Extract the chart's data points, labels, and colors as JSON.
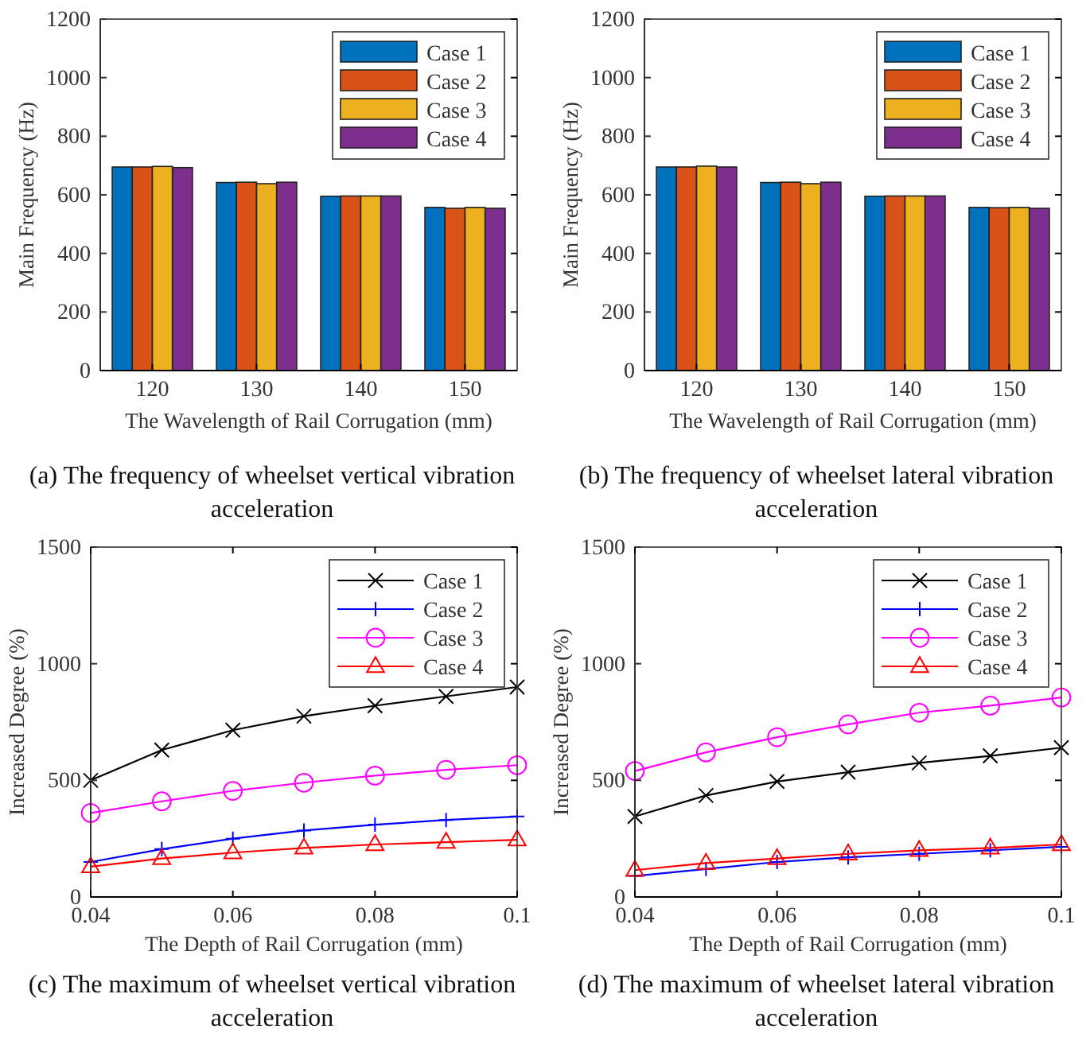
{
  "chart_data": [
    {
      "type": "bar",
      "title": "(a) The frequency of wheelset vertical vibration acceleration",
      "xlabel": "The Wavelength of Rail Corrugation (mm)",
      "ylabel": "Main Frequency (Hz)",
      "categories": [
        "120",
        "130",
        "140",
        "150"
      ],
      "ylim": [
        0,
        1200
      ],
      "yticks": [
        0,
        200,
        400,
        600,
        800,
        1000,
        1200
      ],
      "legend": "top right",
      "grid": false,
      "series": [
        {
          "name": "Case 1",
          "color": "#0072bd",
          "values": [
            695,
            642,
            595,
            557
          ]
        },
        {
          "name": "Case 2",
          "color": "#d95319",
          "values": [
            695,
            643,
            596,
            554
          ]
        },
        {
          "name": "Case 3",
          "color": "#edb120",
          "values": [
            697,
            638,
            596,
            557
          ]
        },
        {
          "name": "Case 4",
          "color": "#7e2f8e",
          "values": [
            693,
            643,
            596,
            554
          ]
        }
      ]
    },
    {
      "type": "bar",
      "title": "(b) The frequency of wheelset lateral vibration acceleration",
      "xlabel": "The Wavelength of Rail Corrugation (mm)",
      "ylabel": "Main Frequency (Hz)",
      "categories": [
        "120",
        "130",
        "140",
        "150"
      ],
      "ylim": [
        0,
        1200
      ],
      "yticks": [
        0,
        200,
        400,
        600,
        800,
        1000,
        1200
      ],
      "legend": "top right",
      "grid": false,
      "series": [
        {
          "name": "Case 1",
          "color": "#0072bd",
          "values": [
            695,
            642,
            595,
            557
          ]
        },
        {
          "name": "Case 2",
          "color": "#d95319",
          "values": [
            695,
            643,
            596,
            556
          ]
        },
        {
          "name": "Case 3",
          "color": "#edb120",
          "values": [
            698,
            638,
            596,
            557
          ]
        },
        {
          "name": "Case 4",
          "color": "#7e2f8e",
          "values": [
            695,
            643,
            596,
            554
          ]
        }
      ]
    },
    {
      "type": "line",
      "title": "(c) The maximum of wheelset vertical vibration acceleration",
      "xlabel": "The Depth of Rail Corrugation (mm)",
      "ylabel": "Increased Degree (%)",
      "x": [
        0.04,
        0.05,
        0.06,
        0.07,
        0.08,
        0.09,
        0.1
      ],
      "xlim": [
        0.04,
        0.1
      ],
      "xticks": [
        0.04,
        0.06,
        0.08,
        0.1
      ],
      "ylim": [
        0,
        1500
      ],
      "yticks": [
        0,
        500,
        1000,
        1500
      ],
      "legend": "top right",
      "grid": false,
      "line_style": "solid",
      "series": [
        {
          "name": "Case 1",
          "color": "#000000",
          "marker": "cross",
          "values": [
            500,
            630,
            715,
            775,
            820,
            860,
            900
          ]
        },
        {
          "name": "Case 2",
          "color": "#0000ff",
          "marker": "plus",
          "values": [
            150,
            205,
            250,
            285,
            310,
            330,
            345
          ]
        },
        {
          "name": "Case 3",
          "color": "#ff00ff",
          "marker": "circle",
          "values": [
            360,
            410,
            455,
            490,
            520,
            545,
            565
          ]
        },
        {
          "name": "Case 4",
          "color": "#ff0000",
          "marker": "triangle",
          "values": [
            130,
            165,
            190,
            210,
            225,
            235,
            245
          ]
        }
      ]
    },
    {
      "type": "line",
      "title": "(d) The maximum of wheelset lateral vibration acceleration",
      "xlabel": "The Depth of Rail Corrugation (mm)",
      "ylabel": "Increased Degree (%)",
      "x": [
        0.04,
        0.05,
        0.06,
        0.07,
        0.08,
        0.09,
        0.1
      ],
      "xlim": [
        0.04,
        0.1
      ],
      "xticks": [
        0.04,
        0.06,
        0.08,
        0.1
      ],
      "ylim": [
        0,
        1500
      ],
      "yticks": [
        0,
        500,
        1000,
        1500
      ],
      "legend": "top right",
      "grid": false,
      "line_style": "solid",
      "series": [
        {
          "name": "Case 1",
          "color": "#000000",
          "marker": "cross",
          "values": [
            345,
            435,
            495,
            535,
            575,
            605,
            640
          ]
        },
        {
          "name": "Case 2",
          "color": "#0000ff",
          "marker": "plus",
          "values": [
            90,
            120,
            150,
            170,
            185,
            200,
            215
          ]
        },
        {
          "name": "Case 3",
          "color": "#ff00ff",
          "marker": "circle",
          "values": [
            540,
            620,
            685,
            740,
            790,
            820,
            855
          ]
        },
        {
          "name": "Case 4",
          "color": "#ff0000",
          "marker": "triangle",
          "values": [
            115,
            145,
            165,
            185,
            200,
            210,
            225
          ]
        }
      ]
    }
  ]
}
